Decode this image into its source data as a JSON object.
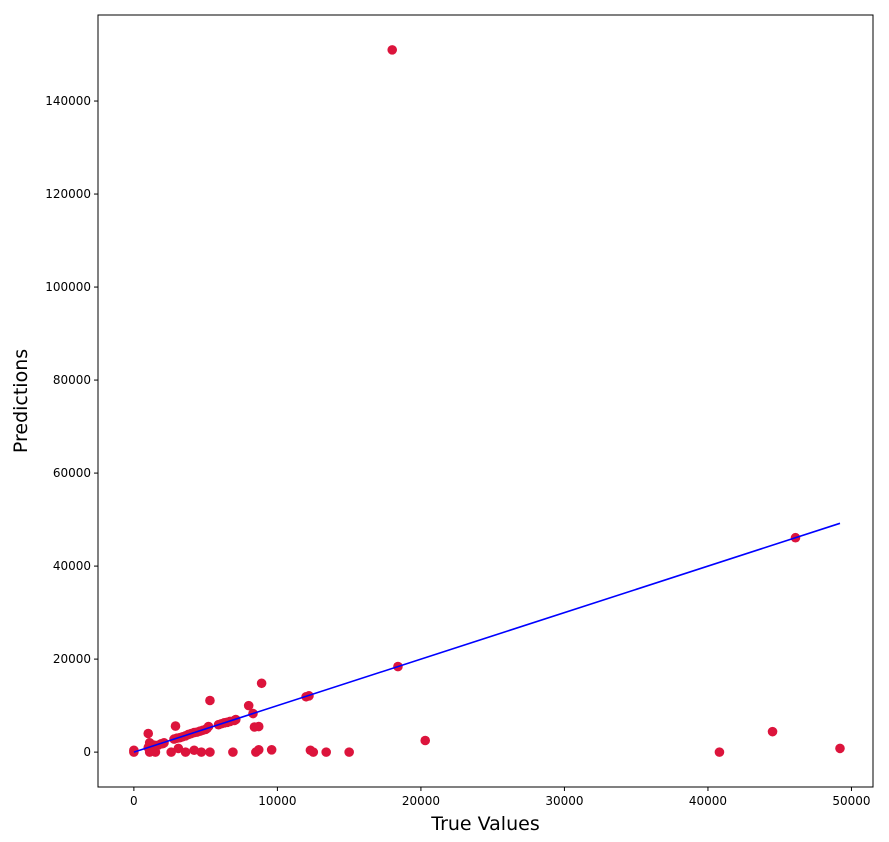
{
  "chart_data": {
    "type": "scatter",
    "title": "",
    "xlabel": "True Values",
    "ylabel": "Predictions",
    "xlim": [
      -2500,
      51500
    ],
    "ylim": [
      -7500,
      158500
    ],
    "xticks": [
      0,
      10000,
      20000,
      30000,
      40000,
      50000
    ],
    "xtick_labels": [
      "0",
      "10000",
      "20000",
      "30000",
      "40000",
      "50000"
    ],
    "yticks": [
      0,
      20000,
      40000,
      60000,
      80000,
      100000,
      120000,
      140000
    ],
    "ytick_labels": [
      "0",
      "20000",
      "40000",
      "60000",
      "80000",
      "100000",
      "120000",
      "140000"
    ],
    "grid": false,
    "series": [
      {
        "kind": "scatter",
        "color": "#dc143c",
        "points": [
          [
            0,
            0
          ],
          [
            0,
            400
          ],
          [
            1000,
            4000
          ],
          [
            1000,
            1000
          ],
          [
            1100,
            2000
          ],
          [
            1100,
            0
          ],
          [
            1300,
            500
          ],
          [
            1400,
            1500
          ],
          [
            1500,
            0
          ],
          [
            1700,
            1500
          ],
          [
            1900,
            1800
          ],
          [
            2000,
            1800
          ],
          [
            2100,
            2000
          ],
          [
            2600,
            0
          ],
          [
            2800,
            2800
          ],
          [
            2900,
            5600
          ],
          [
            3000,
            3000
          ],
          [
            3100,
            800
          ],
          [
            3200,
            3100
          ],
          [
            3400,
            3300
          ],
          [
            3600,
            3500
          ],
          [
            3600,
            0
          ],
          [
            3800,
            3800
          ],
          [
            4000,
            4000
          ],
          [
            4200,
            4200
          ],
          [
            4200,
            400
          ],
          [
            4400,
            4300
          ],
          [
            4600,
            4500
          ],
          [
            4700,
            0
          ],
          [
            4800,
            4700
          ],
          [
            5000,
            4900
          ],
          [
            5100,
            5100
          ],
          [
            5200,
            5500
          ],
          [
            5300,
            11100
          ],
          [
            5300,
            0
          ],
          [
            5900,
            5900
          ],
          [
            6100,
            6100
          ],
          [
            6300,
            6300
          ],
          [
            6500,
            6400
          ],
          [
            6700,
            6600
          ],
          [
            6900,
            0
          ],
          [
            7000,
            6800
          ],
          [
            7100,
            7000
          ],
          [
            8000,
            10000
          ],
          [
            8300,
            8300
          ],
          [
            8400,
            5400
          ],
          [
            8500,
            0
          ],
          [
            8700,
            5500
          ],
          [
            8700,
            500
          ],
          [
            8900,
            14800
          ],
          [
            9600,
            500
          ],
          [
            12000,
            11900
          ],
          [
            12200,
            12100
          ],
          [
            12300,
            400
          ],
          [
            12500,
            0
          ],
          [
            13400,
            0
          ],
          [
            15000,
            0
          ],
          [
            18000,
            151000
          ],
          [
            18400,
            18400
          ],
          [
            20300,
            2500
          ],
          [
            40800,
            0
          ],
          [
            44500,
            4400
          ],
          [
            46100,
            46100
          ],
          [
            49200,
            800
          ]
        ]
      },
      {
        "kind": "line",
        "color": "#0000ff",
        "from": [
          0,
          0
        ],
        "to": [
          49200,
          49200
        ]
      }
    ]
  }
}
